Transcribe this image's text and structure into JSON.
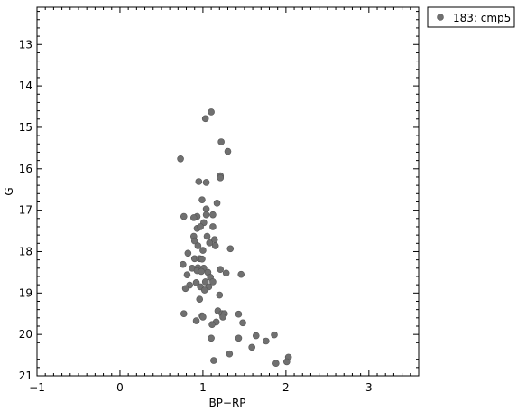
{
  "chart_data": {
    "type": "scatter",
    "title": "",
    "xlabel": "BP−RP",
    "ylabel": "G",
    "xlim": [
      -1,
      3.6
    ],
    "ylim": [
      21,
      12.1
    ],
    "y_inverted": true,
    "x_ticks": [
      -1,
      0,
      1,
      2,
      3
    ],
    "x_tick_labels": [
      "−1",
      "0",
      "1",
      "2",
      "3"
    ],
    "y_ticks": [
      13,
      14,
      15,
      16,
      17,
      18,
      19,
      20,
      21
    ],
    "y_tick_labels": [
      "13",
      "14",
      "15",
      "16",
      "17",
      "18",
      "19",
      "20",
      "21"
    ],
    "grid": false,
    "legend_position": "top-right outside",
    "marker_color": "#707070",
    "series": [
      {
        "name": "183: cmp5",
        "points": [
          [
            1.1,
            14.63
          ],
          [
            1.03,
            14.79
          ],
          [
            1.22,
            15.35
          ],
          [
            1.3,
            15.58
          ],
          [
            0.73,
            15.76
          ],
          [
            1.21,
            16.17
          ],
          [
            1.21,
            16.22
          ],
          [
            0.95,
            16.31
          ],
          [
            1.04,
            16.33
          ],
          [
            0.99,
            16.75
          ],
          [
            1.17,
            16.83
          ],
          [
            1.04,
            16.97
          ],
          [
            0.77,
            17.15
          ],
          [
            0.93,
            17.15
          ],
          [
            1.04,
            17.11
          ],
          [
            1.12,
            17.11
          ],
          [
            0.89,
            17.18
          ],
          [
            1.01,
            17.3
          ],
          [
            0.93,
            17.44
          ],
          [
            0.97,
            17.4
          ],
          [
            1.12,
            17.4
          ],
          [
            0.89,
            17.63
          ],
          [
            1.05,
            17.63
          ],
          [
            0.9,
            17.74
          ],
          [
            1.14,
            17.71
          ],
          [
            1.08,
            17.79
          ],
          [
            0.94,
            17.86
          ],
          [
            1.15,
            17.86
          ],
          [
            1.33,
            17.93
          ],
          [
            1.0,
            17.97
          ],
          [
            0.82,
            18.04
          ],
          [
            0.9,
            18.17
          ],
          [
            0.96,
            18.17
          ],
          [
            0.99,
            18.18
          ],
          [
            0.76,
            18.31
          ],
          [
            0.87,
            18.4
          ],
          [
            0.94,
            18.39
          ],
          [
            1.01,
            18.4
          ],
          [
            1.21,
            18.43
          ],
          [
            0.93,
            18.46
          ],
          [
            0.98,
            18.48
          ],
          [
            1.06,
            18.5
          ],
          [
            0.81,
            18.56
          ],
          [
            1.28,
            18.52
          ],
          [
            1.46,
            18.55
          ],
          [
            1.09,
            18.62
          ],
          [
            0.92,
            18.75
          ],
          [
            1.03,
            18.73
          ],
          [
            1.12,
            18.73
          ],
          [
            0.84,
            18.81
          ],
          [
            0.97,
            18.85
          ],
          [
            1.07,
            18.85
          ],
          [
            0.79,
            18.89
          ],
          [
            1.02,
            18.93
          ],
          [
            1.2,
            19.05
          ],
          [
            0.96,
            19.15
          ],
          [
            1.18,
            19.43
          ],
          [
            1.23,
            19.5
          ],
          [
            1.26,
            19.5
          ],
          [
            1.43,
            19.51
          ],
          [
            0.77,
            19.5
          ],
          [
            0.99,
            19.55
          ],
          [
            1.0,
            19.58
          ],
          [
            1.24,
            19.58
          ],
          [
            0.92,
            19.67
          ],
          [
            1.16,
            19.7
          ],
          [
            1.48,
            19.72
          ],
          [
            1.11,
            19.76
          ],
          [
            1.86,
            20.01
          ],
          [
            1.64,
            20.03
          ],
          [
            1.1,
            20.09
          ],
          [
            1.43,
            20.09
          ],
          [
            1.76,
            20.16
          ],
          [
            1.59,
            20.31
          ],
          [
            1.32,
            20.47
          ],
          [
            2.03,
            20.55
          ],
          [
            1.13,
            20.63
          ],
          [
            2.01,
            20.66
          ],
          [
            1.88,
            20.7
          ]
        ]
      }
    ]
  }
}
